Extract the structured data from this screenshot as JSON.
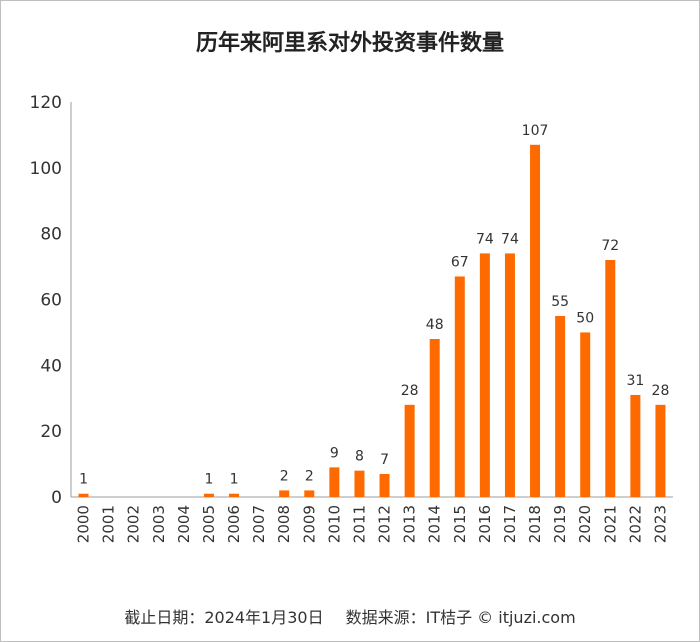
{
  "chart_data": {
    "type": "bar",
    "title": "历年来阿里系对外投资事件数量",
    "categories": [
      "2000",
      "2001",
      "2002",
      "2003",
      "2004",
      "2005",
      "2006",
      "2007",
      "2008",
      "2009",
      "2010",
      "2011",
      "2012",
      "2013",
      "2014",
      "2015",
      "2016",
      "2017",
      "2018",
      "2019",
      "2020",
      "2021",
      "2022",
      "2023"
    ],
    "values": [
      1,
      0,
      0,
      0,
      0,
      1,
      1,
      0,
      2,
      2,
      9,
      8,
      7,
      28,
      48,
      67,
      74,
      74,
      107,
      55,
      50,
      72,
      31,
      28
    ],
    "data_labels": [
      "1",
      "",
      "",
      "",
      "",
      "1",
      "1",
      "",
      "2",
      "2",
      "9",
      "8",
      "7",
      "28",
      "48",
      "67",
      "74",
      "74",
      "107",
      "55",
      "50",
      "72",
      "31",
      "28"
    ],
    "ylim": [
      0,
      120
    ],
    "yticks": [
      0,
      20,
      40,
      60,
      80,
      100,
      120
    ],
    "grid": false,
    "bar_color": "#ff6a00"
  },
  "footer": {
    "date": "截止日期：2024年1月30日",
    "source": "数据来源：IT桔子 © itjuzi.com"
  }
}
